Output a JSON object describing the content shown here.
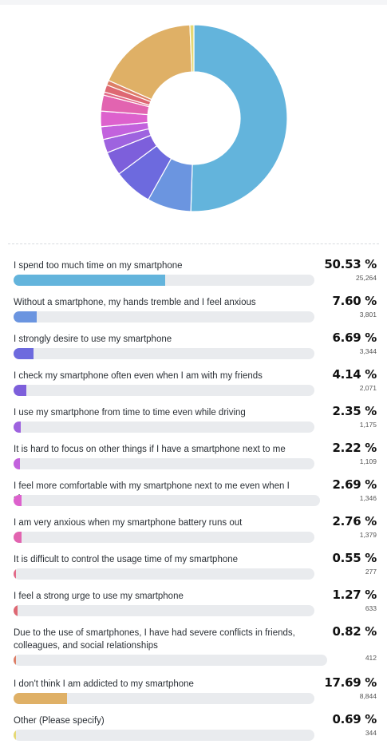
{
  "chart_data": {
    "type": "pie",
    "donut": true,
    "categories": [
      "I spend too much time on my smartphone",
      "Without a smartphone, my hands tremble and I feel anxious",
      "I strongly desire to use my smartphone",
      "I check my smartphone often even when I am with my friends",
      "I use my smartphone from time to time even while driving",
      "It is hard to focus on other things if I have a smartphone next to me",
      "I feel more comfortable with my smartphone next to me even when I sleep",
      "I am very anxious when my smartphone battery runs out",
      "It is difficult to control the usage time of my smartphone",
      "I feel a strong urge to use my smartphone",
      "Due to the use of smartphones, I have had severe conflicts in friends, colleagues, and social relationships",
      "I don't think I am addicted to my smartphone",
      "Other (Please specify)"
    ],
    "percent_labels": [
      "50.53 %",
      "7.60 %",
      "6.69 %",
      "4.14 %",
      "2.35 %",
      "2.22 %",
      "2.69 %",
      "2.76 %",
      "0.55 %",
      "1.27 %",
      "0.82 %",
      "17.69 %",
      "0.69 %"
    ],
    "values": [
      50.53,
      7.6,
      6.69,
      4.14,
      2.35,
      2.22,
      2.69,
      2.76,
      0.55,
      1.27,
      0.82,
      17.69,
      0.69
    ],
    "counts": [
      "25,264",
      "3,801",
      "3,344",
      "2,071",
      "1,175",
      "1,109",
      "1,346",
      "1,379",
      "277",
      "633",
      "412",
      "8,844",
      "344"
    ],
    "colors": [
      "#63b4dc",
      "#6b95e0",
      "#6d6ade",
      "#7d5fdb",
      "#9e63df",
      "#c262dd",
      "#dd61cd",
      "#e264b0",
      "#e26a88",
      "#de6873",
      "#dd7f67",
      "#dfb066",
      "#e5d873"
    ]
  }
}
